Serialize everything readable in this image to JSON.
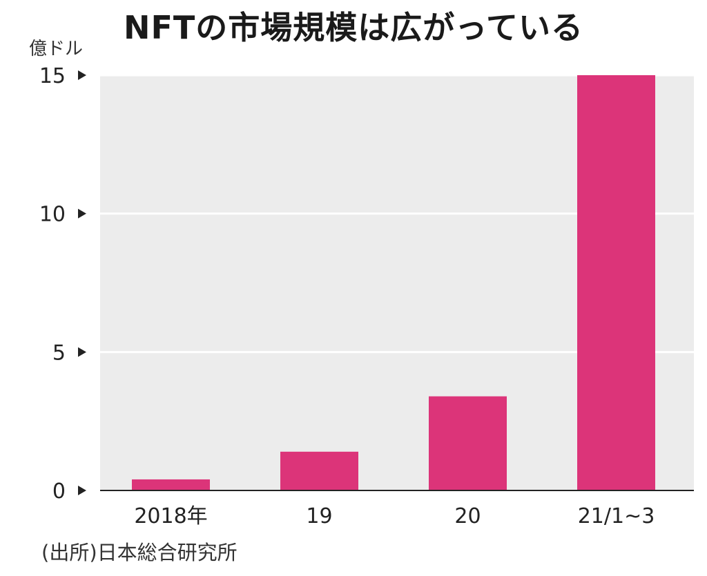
{
  "chart_data": {
    "type": "bar",
    "title": "NFTの市場規模は広がっている",
    "ylabel": "億ドル",
    "xlabel": "",
    "categories": [
      "2018年",
      "19",
      "20",
      "21/1~3"
    ],
    "values": [
      0.4,
      1.4,
      3.4,
      15.0
    ],
    "yticks": [
      0,
      5,
      10,
      15
    ],
    "ylim": [
      0,
      15
    ],
    "grid": true,
    "source": "(出所)日本総合研究所",
    "colors": {
      "bar": "#dc3479",
      "plot_background": "#ececec",
      "gridline": "#ffffff",
      "axis": "#222222"
    }
  }
}
